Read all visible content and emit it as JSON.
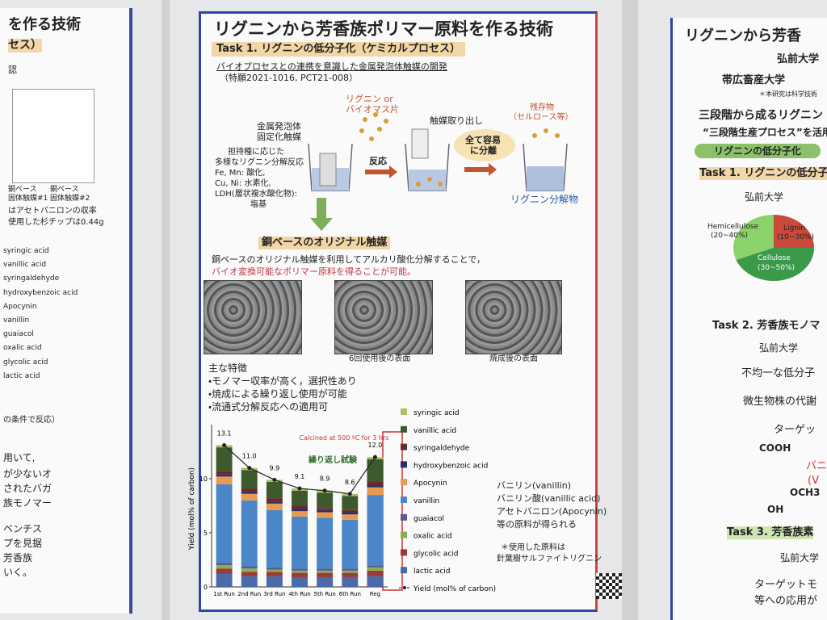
{
  "left_poster": {
    "title": "を作る技術",
    "subtitle": "セス）",
    "note": "認",
    "bar_labels": [
      [
        "銅ベース",
        "固体触媒#1"
      ],
      [
        "銅ベース",
        "固体触媒#2"
      ]
    ],
    "captions": [
      "はアセトバニロンの収率",
      "使用した杉チップは0.44g"
    ],
    "legend": [
      "syringic acid",
      "vanillic acid",
      "syringaldehyde",
      "hydroxybenzoic acid",
      "Apocynin",
      "vanillin",
      "guaiacol",
      "oxalic acid",
      "glycolic acid",
      "lactic acid"
    ],
    "condition": "の条件で反応）",
    "body": [
      "用いて,",
      "が少ないオ",
      "されたバガ",
      "族モノマー",
      "ベンチス",
      "プを見据",
      "芳香族",
      "いく。"
    ]
  },
  "center_poster": {
    "title": "リグニンから芳香族ポリマー原料を作る技術",
    "task": "Task 1. リグニンの低分子化（ケミカルプロセス）",
    "subtitle": "バイオプロセスとの連携を意識した金属発泡体触媒の開発",
    "patent": "（特願2021-1016, PCT21-008）",
    "diagram": {
      "feed": [
        "リグニン or",
        "バイオマス片"
      ],
      "catalyst": [
        "金属発泡体",
        "固定化触媒"
      ],
      "reactions": [
        "担持種に応じた",
        "多様なリグニン分解反応",
        "Fe, Mn: 酸化,",
        "Cu, Ni: 水素化,",
        "LDH(層状複水酸化物):",
        "塩基"
      ],
      "reaction": "反応",
      "takeout": "触媒取り出し",
      "separation": [
        "全て容易",
        "に分離"
      ],
      "residue": [
        "残存物",
        "（セルロース等）"
      ],
      "product": "リグニン分解物"
    },
    "section": "銅ベースのオリジナル触媒",
    "description": [
      "銅ベースのオリジナル触媒を利用してアルカリ酸化分解することで，",
      "バイオ変換可能なポリマー原料を得ることが可能。"
    ],
    "photo_captions": [
      "6回使用後の表面",
      "焼成後の表面"
    ],
    "features_title": "主な特徴",
    "features": [
      "・モノマー収率が高く，選択性あり",
      "・焼成による繰り返し使用が可能",
      "・流通式分解反応への適用可"
    ],
    "products": [
      "バニリン(vanillin)",
      "バニリン酸(vanillic acid)",
      "アセトバニロン(Apocynin)",
      "等の原料が得られる"
    ],
    "source": [
      "＊使用した原料は",
      "針葉樹サルファイトリグニン"
    ]
  },
  "chart_data": {
    "type": "bar",
    "stacked": true,
    "y_label": "Yield (mol% of carbon)",
    "annotations": [
      "Calcined at 500 ºC for 3 hrs",
      "繰り返し試験"
    ],
    "categories": [
      "1st Run",
      "2nd Run",
      "3rd Run",
      "4th Run",
      "5th Run",
      "6th Run",
      "Reg"
    ],
    "ylim": [
      0,
      15
    ],
    "yticks": [
      0,
      5,
      10
    ],
    "series": [
      {
        "name": "syringic acid",
        "color": "#a9c064",
        "values": [
          0.2,
          0.2,
          0.2,
          0.2,
          0.2,
          0.2,
          0.2
        ]
      },
      {
        "name": "vanillic acid",
        "color": "#3d5a2c",
        "values": [
          2.2,
          1.7,
          1.5,
          1.4,
          1.4,
          1.3,
          2.1
        ]
      },
      {
        "name": "syringaldehyde",
        "color": "#6b2a2a",
        "values": [
          0.3,
          0.3,
          0.3,
          0.3,
          0.2,
          0.2,
          0.3
        ]
      },
      {
        "name": "hydroxybenzoic acid",
        "color": "#2a2f6b",
        "values": [
          0.2,
          0.2,
          0.2,
          0.2,
          0.2,
          0.2,
          0.2
        ]
      },
      {
        "name": "Apocynin",
        "color": "#e89a50",
        "values": [
          0.7,
          0.6,
          0.6,
          0.5,
          0.5,
          0.5,
          0.7
        ]
      },
      {
        "name": "vanillin",
        "color": "#4a86c8",
        "values": [
          7.3,
          6.1,
          5.3,
          4.8,
          4.7,
          4.5,
          6.5
        ]
      },
      {
        "name": "guaiacol",
        "color": "#5a5a9a",
        "values": [
          0.2,
          0.2,
          0.2,
          0.2,
          0.2,
          0.2,
          0.2
        ]
      },
      {
        "name": "oxalic acid",
        "color": "#8ab04a",
        "values": [
          0.3,
          0.3,
          0.2,
          0.2,
          0.2,
          0.2,
          0.3
        ]
      },
      {
        "name": "glycolic acid",
        "color": "#9a3a3a",
        "values": [
          0.5,
          0.4,
          0.4,
          0.4,
          0.4,
          0.4,
          0.5
        ]
      },
      {
        "name": "lactic acid",
        "color": "#4a6aa8",
        "values": [
          1.2,
          1.0,
          1.0,
          0.9,
          0.9,
          0.9,
          1.0
        ]
      },
      {
        "name": "Yield (mol% of carbon)",
        "type": "line",
        "color": "#222222",
        "values": [
          13.1,
          11.0,
          9.9,
          9.1,
          8.9,
          8.6,
          12.0
        ],
        "value_labels": [
          "13.1",
          "11.0",
          "9.9",
          "9.1",
          "8.9",
          "8.6",
          "12.0"
        ]
      }
    ]
  },
  "right_poster": {
    "title": "リグニンから芳香",
    "org1": "弘前大学",
    "org2": "帯広畜産大学",
    "note": "＊本研究は科学技術",
    "heading": "三段階から成るリグニン",
    "process": "“三段階生産プロセス”を活用",
    "pill": "リグニンの低分子化",
    "task1": "Task 1. リグニンの低分子",
    "org3": "弘前大学",
    "pie": [
      "Hemicellulose",
      "(20~40%)",
      "Lignin",
      "(10~30%)",
      "Cellulose",
      "(30~50%)"
    ],
    "task2": "Task 2. 芳香族モノマ",
    "org4": "弘前大学",
    "text1": "不均一な低分子",
    "text2": "微生物株の代謝",
    "text3": "ターゲッ",
    "chem": [
      "COOH",
      "OCH3",
      "OH"
    ],
    "red": [
      "バニ",
      "(V"
    ],
    "task3": "Task 3. 芳香族素",
    "org5": "弘前大学",
    "text4": "ターゲットモ",
    "text5": "等への応用が"
  }
}
